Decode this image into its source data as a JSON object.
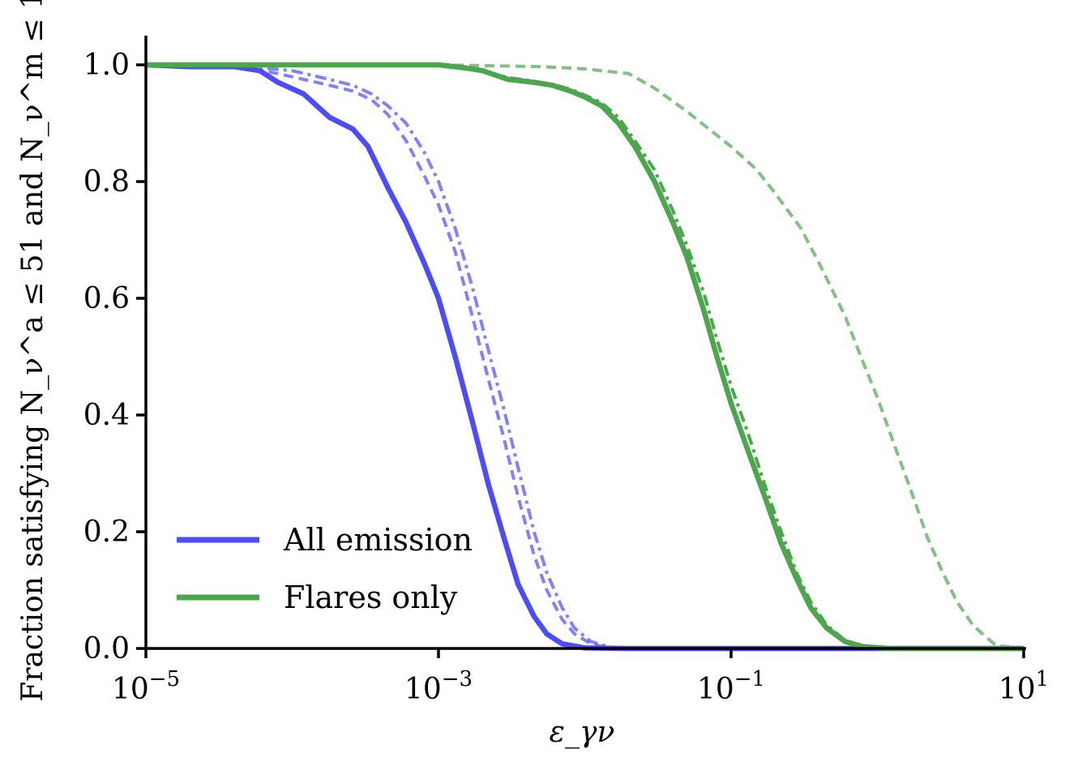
{
  "chart_data": {
    "type": "line",
    "xscale": "log",
    "xlim": [
      1e-05,
      10
    ],
    "ylim": [
      0,
      1.05
    ],
    "xlabel": "ε_γν",
    "ylabel": "Fraction satisfying N_ν^a ≤ 51 and N_ν^m ≤ 1",
    "xticks": [
      {
        "value": 1e-05,
        "base": "10",
        "exp": "−5"
      },
      {
        "value": 0.001,
        "base": "10",
        "exp": "−3"
      },
      {
        "value": 0.1,
        "base": "10",
        "exp": "−1"
      },
      {
        "value": 10,
        "base": "10",
        "exp": "1"
      }
    ],
    "yticks": [
      "0.0",
      "0.2",
      "0.4",
      "0.6",
      "0.8",
      "1.0"
    ],
    "legend": {
      "position": "lower-left",
      "entries": [
        {
          "label": "All emission",
          "color": "#4b4bff"
        },
        {
          "label": "Flares only",
          "color": "#4ca64c"
        }
      ]
    },
    "series": [
      {
        "group": "All emission",
        "style": "solid",
        "color": "#4b4bff",
        "opacity": 1.0,
        "points": [
          [
            1e-05,
            1.0
          ],
          [
            2e-05,
            0.997
          ],
          [
            4e-05,
            0.997
          ],
          [
            6e-05,
            0.99
          ],
          [
            8e-05,
            0.97
          ],
          [
            0.00012,
            0.95
          ],
          [
            0.00018,
            0.91
          ],
          [
            0.00026,
            0.89
          ],
          [
            0.00033,
            0.86
          ],
          [
            0.00045,
            0.79
          ],
          [
            0.0006,
            0.73
          ],
          [
            0.0008,
            0.66
          ],
          [
            0.001,
            0.6
          ],
          [
            0.0013,
            0.5
          ],
          [
            0.0017,
            0.39
          ],
          [
            0.0022,
            0.28
          ],
          [
            0.0028,
            0.19
          ],
          [
            0.0035,
            0.11
          ],
          [
            0.0045,
            0.055
          ],
          [
            0.0055,
            0.025
          ],
          [
            0.007,
            0.008
          ],
          [
            0.01,
            0.001
          ],
          [
            0.02,
            0.0
          ],
          [
            10,
            0.0
          ]
        ]
      },
      {
        "group": "All emission",
        "style": "dash",
        "color": "#4b4bff",
        "opacity": 0.7,
        "points": [
          [
            1e-05,
            1.0
          ],
          [
            3e-05,
            0.998
          ],
          [
            5e-05,
            0.995
          ],
          [
            8e-05,
            0.985
          ],
          [
            0.00012,
            0.975
          ],
          [
            0.00018,
            0.965
          ],
          [
            0.00026,
            0.955
          ],
          [
            0.00035,
            0.94
          ],
          [
            0.00045,
            0.915
          ],
          [
            0.0006,
            0.87
          ],
          [
            0.0008,
            0.81
          ],
          [
            0.001,
            0.76
          ],
          [
            0.0013,
            0.68
          ],
          [
            0.0017,
            0.57
          ],
          [
            0.0022,
            0.46
          ],
          [
            0.0028,
            0.36
          ],
          [
            0.0035,
            0.26
          ],
          [
            0.0045,
            0.16
          ],
          [
            0.0055,
            0.1
          ],
          [
            0.007,
            0.05
          ],
          [
            0.0085,
            0.025
          ],
          [
            0.011,
            0.008
          ],
          [
            0.015,
            0.0
          ],
          [
            10,
            0.0
          ]
        ]
      },
      {
        "group": "All emission",
        "style": "dashdot",
        "color": "#4b4bff",
        "opacity": 0.7,
        "points": [
          [
            1e-05,
            1.0
          ],
          [
            5e-05,
            0.997
          ],
          [
            0.0001,
            0.99
          ],
          [
            0.00018,
            0.975
          ],
          [
            0.00026,
            0.965
          ],
          [
            0.00035,
            0.95
          ],
          [
            0.00045,
            0.93
          ],
          [
            0.0006,
            0.9
          ],
          [
            0.0008,
            0.85
          ],
          [
            0.001,
            0.8
          ],
          [
            0.0013,
            0.72
          ],
          [
            0.0017,
            0.62
          ],
          [
            0.0022,
            0.51
          ],
          [
            0.0028,
            0.41
          ],
          [
            0.0035,
            0.31
          ],
          [
            0.0045,
            0.2
          ],
          [
            0.0055,
            0.13
          ],
          [
            0.007,
            0.07
          ],
          [
            0.0085,
            0.035
          ],
          [
            0.011,
            0.012
          ],
          [
            0.015,
            0.002
          ],
          [
            0.02,
            0.0
          ],
          [
            10,
            0.0
          ]
        ]
      },
      {
        "group": "Flares only",
        "style": "solid",
        "color": "#4ca64c",
        "opacity": 1.0,
        "points": [
          [
            1e-05,
            1.0
          ],
          [
            0.001,
            1.0
          ],
          [
            0.0015,
            0.995
          ],
          [
            0.002,
            0.99
          ],
          [
            0.003,
            0.975
          ],
          [
            0.0045,
            0.97
          ],
          [
            0.006,
            0.965
          ],
          [
            0.008,
            0.955
          ],
          [
            0.01,
            0.945
          ],
          [
            0.013,
            0.93
          ],
          [
            0.017,
            0.9
          ],
          [
            0.022,
            0.86
          ],
          [
            0.03,
            0.8
          ],
          [
            0.04,
            0.73
          ],
          [
            0.05,
            0.67
          ],
          [
            0.065,
            0.58
          ],
          [
            0.08,
            0.5
          ],
          [
            0.1,
            0.42
          ],
          [
            0.13,
            0.34
          ],
          [
            0.17,
            0.26
          ],
          [
            0.22,
            0.18
          ],
          [
            0.28,
            0.12
          ],
          [
            0.35,
            0.07
          ],
          [
            0.45,
            0.035
          ],
          [
            0.6,
            0.012
          ],
          [
            0.8,
            0.003
          ],
          [
            1.2,
            0.0
          ],
          [
            10,
            0.0
          ]
        ]
      },
      {
        "group": "Flares only",
        "style": "dashdot",
        "color": "#4ca64c",
        "opacity": 1.0,
        "points": [
          [
            0.001,
            1.0
          ],
          [
            0.002,
            0.99
          ],
          [
            0.003,
            0.978
          ],
          [
            0.0045,
            0.972
          ],
          [
            0.006,
            0.967
          ],
          [
            0.008,
            0.958
          ],
          [
            0.01,
            0.948
          ],
          [
            0.013,
            0.935
          ],
          [
            0.017,
            0.91
          ],
          [
            0.022,
            0.87
          ],
          [
            0.03,
            0.82
          ],
          [
            0.04,
            0.75
          ],
          [
            0.05,
            0.69
          ],
          [
            0.065,
            0.61
          ],
          [
            0.08,
            0.53
          ],
          [
            0.1,
            0.45
          ],
          [
            0.13,
            0.37
          ],
          [
            0.17,
            0.28
          ],
          [
            0.22,
            0.2
          ],
          [
            0.28,
            0.13
          ],
          [
            0.35,
            0.08
          ],
          [
            0.45,
            0.04
          ],
          [
            0.6,
            0.014
          ],
          [
            0.8,
            0.004
          ],
          [
            1.2,
            0.0
          ],
          [
            10,
            0.0
          ]
        ]
      },
      {
        "group": "Flares only",
        "style": "dash",
        "color": "#4ca64c",
        "opacity": 0.7,
        "points": [
          [
            0.001,
            1.0
          ],
          [
            0.005,
            0.997
          ],
          [
            0.01,
            0.993
          ],
          [
            0.02,
            0.985
          ],
          [
            0.03,
            0.96
          ],
          [
            0.05,
            0.92
          ],
          [
            0.1,
            0.86
          ],
          [
            0.15,
            0.82
          ],
          [
            0.2,
            0.78
          ],
          [
            0.3,
            0.72
          ],
          [
            0.4,
            0.66
          ],
          [
            0.6,
            0.57
          ],
          [
            0.8,
            0.49
          ],
          [
            1.0,
            0.43
          ],
          [
            1.3,
            0.35
          ],
          [
            1.7,
            0.27
          ],
          [
            2.2,
            0.19
          ],
          [
            2.8,
            0.13
          ],
          [
            3.5,
            0.08
          ],
          [
            4.5,
            0.04
          ],
          [
            5.5,
            0.02
          ],
          [
            6.5,
            0.005
          ],
          [
            10,
            0.0
          ]
        ]
      }
    ]
  }
}
